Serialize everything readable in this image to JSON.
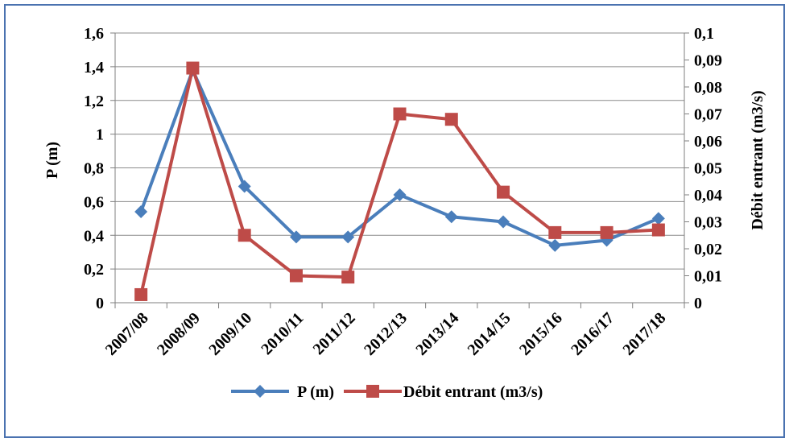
{
  "chart_data": {
    "type": "line",
    "categories": [
      "2007/08",
      "2008/09",
      "2009/10",
      "2010/11",
      "2011/12",
      "2012/13",
      "2013/14",
      "2014/15",
      "2015/16",
      "2016/17",
      "2017/18"
    ],
    "series": [
      {
        "name": "P (m)",
        "axis": "left",
        "color": "#4a7ebb",
        "marker": "diamond",
        "values": [
          0.54,
          1.38,
          0.69,
          0.39,
          0.39,
          0.64,
          0.51,
          0.48,
          0.34,
          0.37,
          0.5
        ]
      },
      {
        "name": "Débit entrant (m3/s)",
        "axis": "right",
        "color": "#be4b48",
        "marker": "square",
        "values": [
          0.003,
          0.087,
          0.025,
          0.01,
          0.0095,
          0.07,
          0.068,
          0.041,
          0.026,
          0.026,
          0.027
        ]
      }
    ],
    "ylabel": "P (m)",
    "y2label": "Débit entrant (m3/s)",
    "ylim": [
      0,
      1.6
    ],
    "y2lim": [
      0,
      0.1
    ],
    "yticks": [
      "0",
      "0,2",
      "0,4",
      "0,6",
      "0,8",
      "1",
      "1,2",
      "1,4",
      "1,6"
    ],
    "y2ticks": [
      "0",
      "0,01",
      "0,02",
      "0,03",
      "0,04",
      "0,05",
      "0,06",
      "0,07",
      "0,08",
      "0,09",
      "0,1"
    ],
    "grid": true,
    "legend": "bottom"
  }
}
